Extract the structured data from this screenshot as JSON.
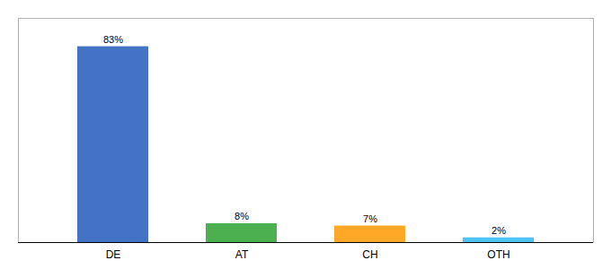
{
  "chart_data": {
    "type": "bar",
    "categories": [
      "DE",
      "AT",
      "CH",
      "OTH"
    ],
    "values": [
      83,
      8,
      7,
      2
    ],
    "value_labels": [
      "83%",
      "8%",
      "7%",
      "2%"
    ],
    "colors": [
      "#4472c4",
      "#4caf50",
      "#ffa726",
      "#4fc3f7"
    ],
    "ylim": [
      0,
      95
    ],
    "data_labels": true,
    "tick_labels": "x",
    "grid": false
  }
}
